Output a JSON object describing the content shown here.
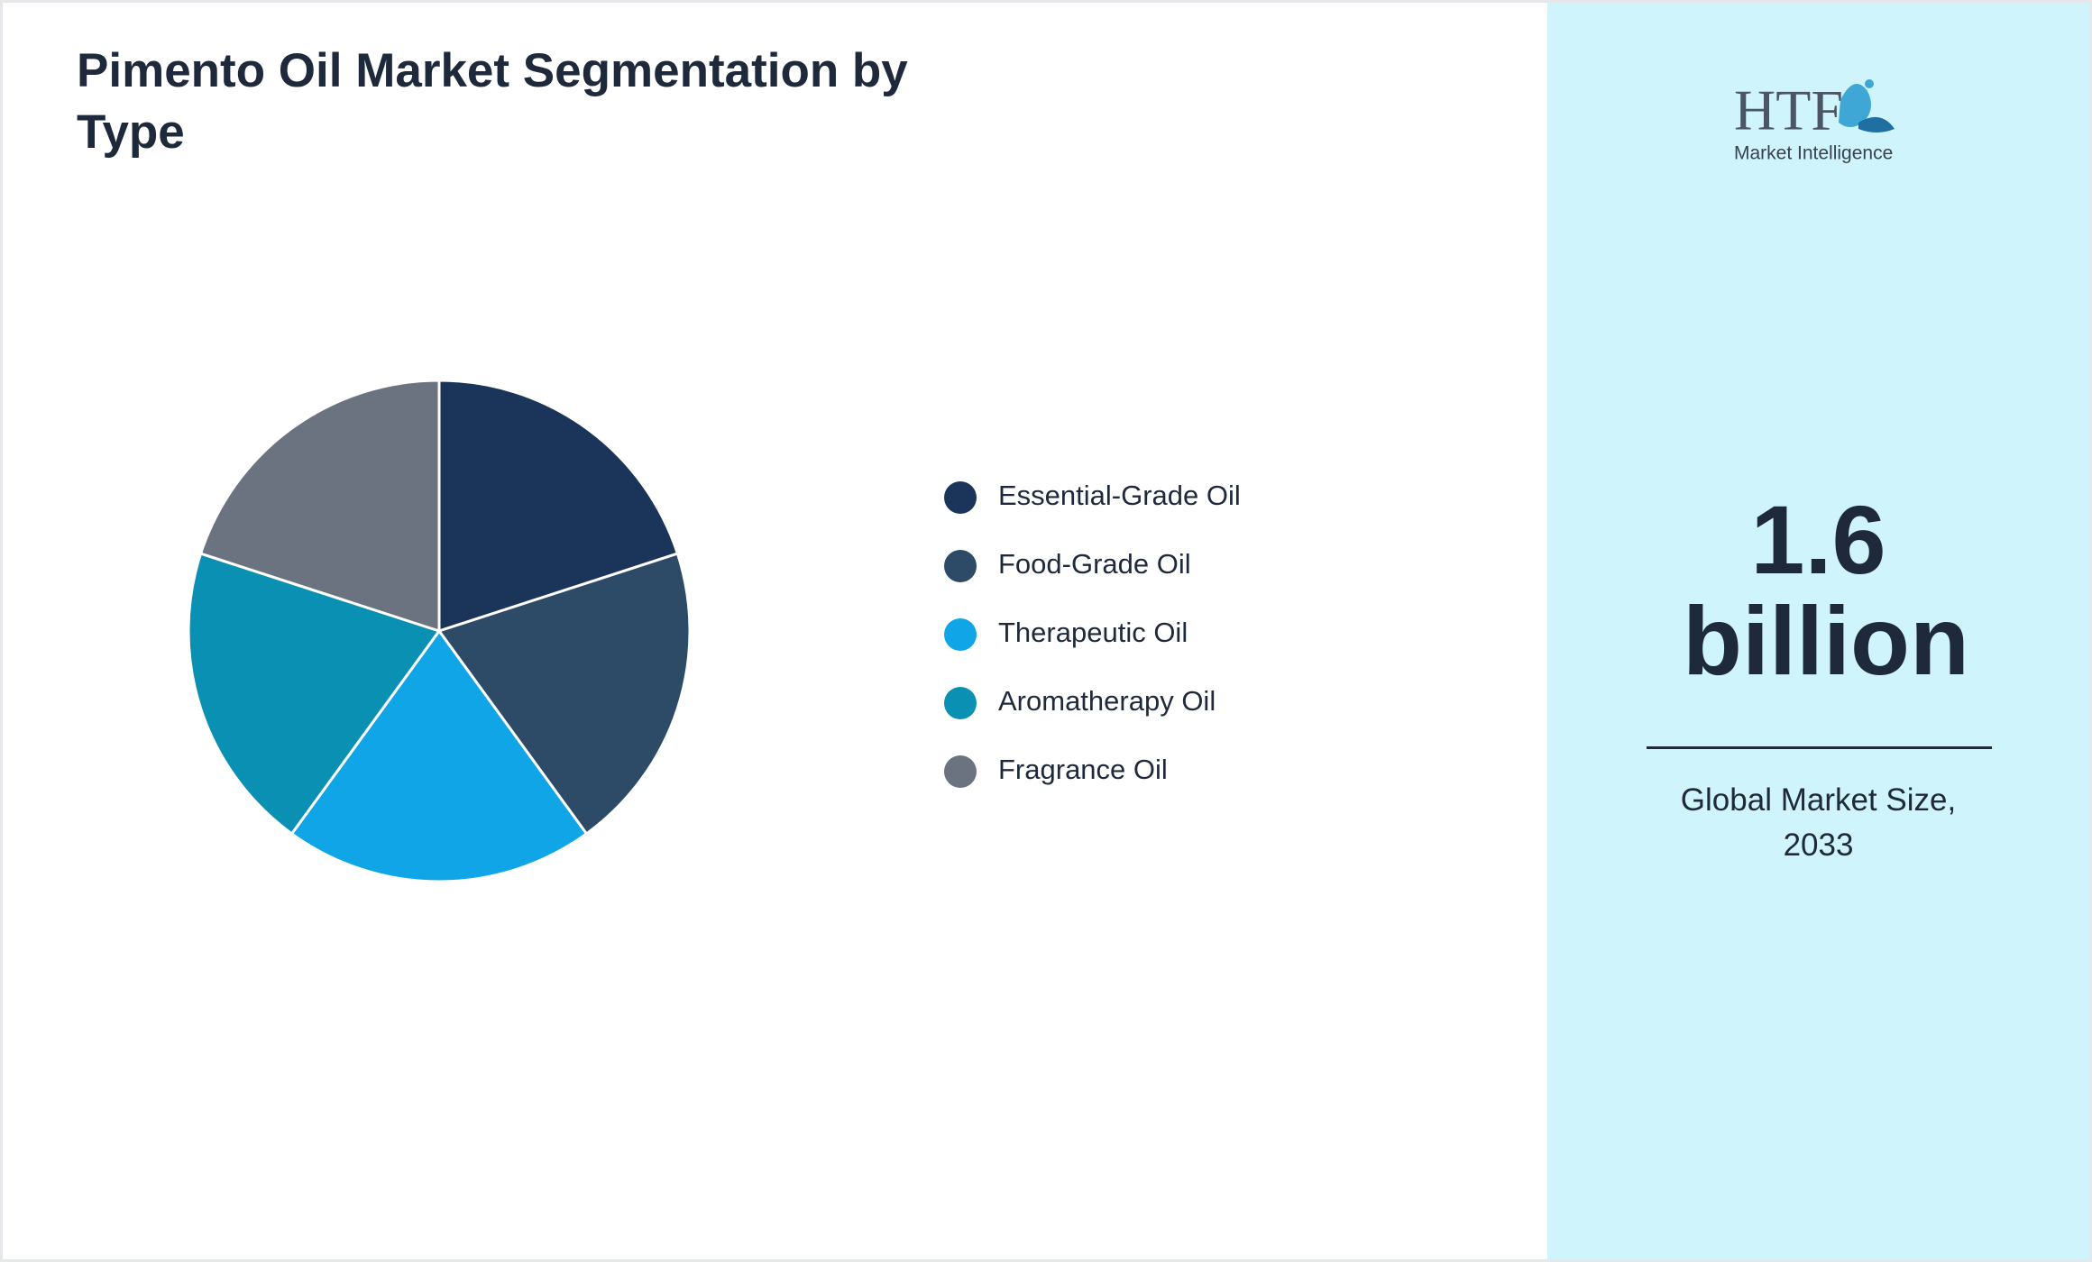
{
  "chart_data": {
    "type": "pie",
    "title": "Pimento Oil Market Segmentation by Type",
    "categories": [
      "Essential-Grade Oil",
      "Food-Grade Oil",
      "Therapeutic Oil",
      "Aromatherapy Oil",
      "Fragrance Oil"
    ],
    "values": [
      20,
      20,
      20,
      20,
      20
    ],
    "colors": [
      "#1b355a",
      "#2d4b66",
      "#10a5e6",
      "#0a90b2",
      "#6b7280"
    ]
  },
  "summary": {
    "value": "1.6 billion",
    "label": "Global Market Size, 2033"
  },
  "logo": {
    "brand": "HTF",
    "tagline": "Market Intelligence"
  }
}
